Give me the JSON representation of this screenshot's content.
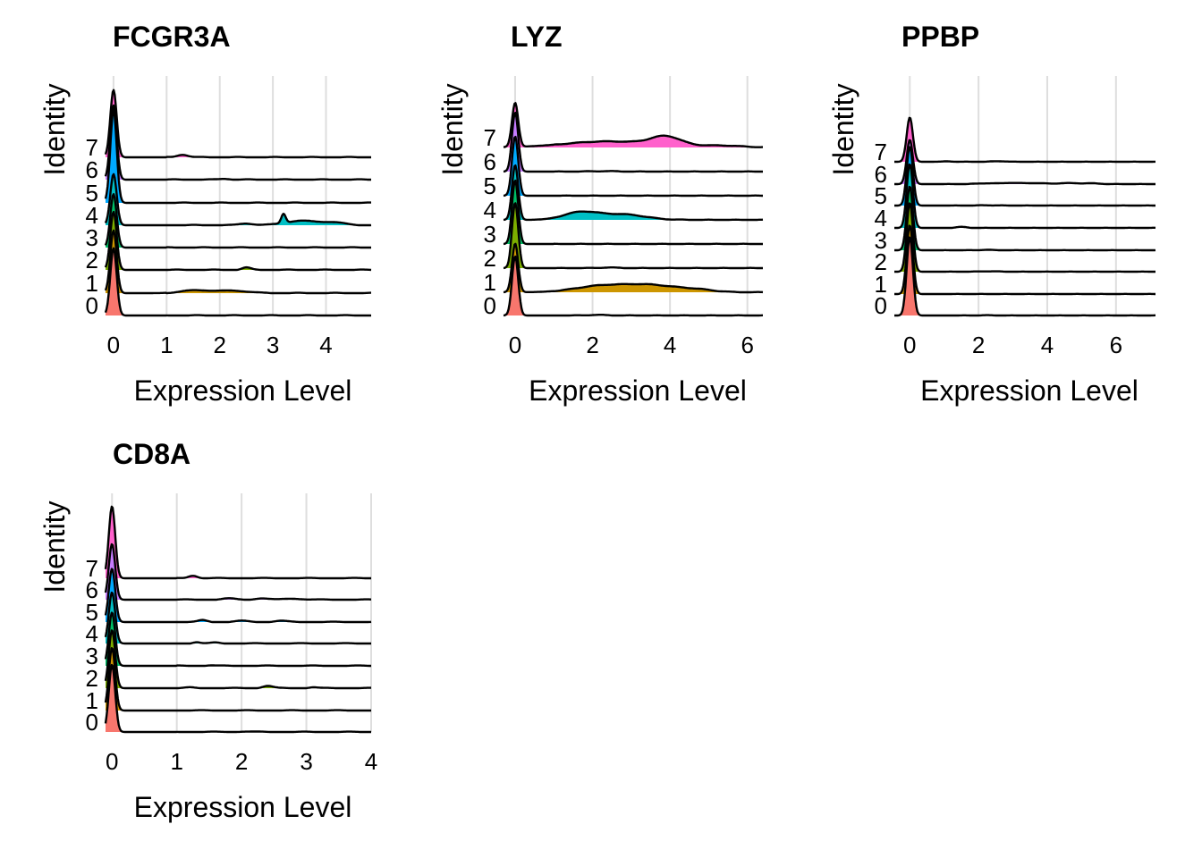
{
  "chart_data": [
    {
      "type": "ridgeline",
      "title": "FCGR3A",
      "xlabel": "Expression Level",
      "ylabel": "Identity",
      "categories": [
        "0",
        "1",
        "2",
        "3",
        "4",
        "5",
        "6",
        "7"
      ],
      "xlim": [
        -0.15,
        4.85
      ],
      "xticks": [
        0,
        1,
        2,
        3,
        4
      ],
      "grid": true,
      "legend": "none",
      "series": [
        {
          "name": "0",
          "color": "#F8766D",
          "peak_height": 2.9,
          "bumps": []
        },
        {
          "name": "1",
          "color": "#CD9600",
          "peak_height": 2.7,
          "bumps": [
            [
              1.6,
              0.13,
              0.35
            ],
            [
              2.3,
              0.1,
              0.3
            ]
          ]
        },
        {
          "name": "2",
          "color": "#7CAE00",
          "peak_height": 2.5,
          "bumps": [
            [
              2.5,
              0.1,
              0.1
            ]
          ]
        },
        {
          "name": "3",
          "color": "#00BE67",
          "peak_height": 2.3,
          "bumps": []
        },
        {
          "name": "4",
          "color": "#00BFC4",
          "peak_height": 2.2,
          "bumps": [
            [
              2.5,
              0.08,
              0.15
            ],
            [
              3.2,
              0.4,
              0.05
            ],
            [
              3.5,
              0.18,
              0.35
            ],
            [
              4.1,
              0.12,
              0.3
            ]
          ]
        },
        {
          "name": "5",
          "color": "#00A9FF",
          "peak_height": 4.0,
          "bumps": []
        },
        {
          "name": "6",
          "color": "#C77CFF",
          "peak_height": 3.2,
          "bumps": [
            [
              2.1,
              0.04,
              0.12
            ]
          ]
        },
        {
          "name": "7",
          "color": "#FF61CC",
          "peak_height": 2.9,
          "bumps": [
            [
              1.3,
              0.12,
              0.12
            ]
          ]
        }
      ]
    },
    {
      "type": "ridgeline",
      "title": "LYZ",
      "xlabel": "Expression Level",
      "ylabel": "Identity",
      "categories": [
        "0",
        "1",
        "2",
        "3",
        "4",
        "5",
        "6",
        "7"
      ],
      "xlim": [
        -0.3,
        6.4
      ],
      "xticks": [
        0,
        2,
        4,
        6
      ],
      "grid": true,
      "legend": "none",
      "series": [
        {
          "name": "0",
          "color": "#F8766D",
          "peak_height": 3.9,
          "bumps": [
            [
              2.1,
              0.04,
              0.2
            ]
          ]
        },
        {
          "name": "1",
          "color": "#CD9600",
          "peak_height": 3.2,
          "bumps": [
            [
              2.2,
              0.4,
              0.6
            ],
            [
              3.5,
              0.45,
              0.6
            ],
            [
              4.7,
              0.15,
              0.4
            ]
          ]
        },
        {
          "name": "2",
          "color": "#7CAE00",
          "peak_height": 4.3,
          "bumps": [
            [
              2.4,
              0.04,
              0.2
            ]
          ]
        },
        {
          "name": "3",
          "color": "#00BE67",
          "peak_height": 4.2,
          "bumps": []
        },
        {
          "name": "4",
          "color": "#00BFC4",
          "peak_height": 3.6,
          "bumps": [
            [
              1.7,
              0.5,
              0.4
            ],
            [
              2.8,
              0.35,
              0.5
            ]
          ]
        },
        {
          "name": "5",
          "color": "#00A9FF",
          "peak_height": 3.9,
          "bumps": []
        },
        {
          "name": "6",
          "color": "#C77CFF",
          "peak_height": 3.9,
          "bumps": [
            [
              2.3,
              0.03,
              0.3
            ]
          ]
        },
        {
          "name": "7",
          "color": "#FF61CC",
          "peak_height": 2.9,
          "bumps": [
            [
              2.4,
              0.4,
              1.0
            ],
            [
              3.9,
              0.6,
              0.35
            ],
            [
              5.3,
              0.12,
              0.5
            ]
          ]
        }
      ]
    },
    {
      "type": "ridgeline",
      "title": "PPBP",
      "xlabel": "Expression Level",
      "ylabel": "Identity",
      "categories": [
        "0",
        "1",
        "2",
        "3",
        "4",
        "5",
        "6",
        "7"
      ],
      "xlim": [
        -0.45,
        7.15
      ],
      "xticks": [
        0,
        2,
        4,
        6
      ],
      "grid": true,
      "legend": "none",
      "series": [
        {
          "name": "0",
          "color": "#F8766D",
          "peak_height": 8.0,
          "bumps": [
            [
              2.2,
              0.02,
              0.2
            ]
          ]
        },
        {
          "name": "1",
          "color": "#CD9600",
          "peak_height": 7.0,
          "bumps": []
        },
        {
          "name": "2",
          "color": "#7CAE00",
          "peak_height": 7.0,
          "bumps": [
            [
              2.3,
              0.04,
              0.2
            ]
          ]
        },
        {
          "name": "3",
          "color": "#00BE67",
          "peak_height": 6.5,
          "bumps": [
            [
              2.2,
              0.04,
              0.15
            ]
          ]
        },
        {
          "name": "4",
          "color": "#00BFC4",
          "peak_height": 6.5,
          "bumps": [
            [
              1.5,
              0.1,
              0.12
            ]
          ]
        },
        {
          "name": "5",
          "color": "#00A9FF",
          "peak_height": 6.0,
          "bumps": [
            [
              2.3,
              0.03,
              0.2
            ]
          ]
        },
        {
          "name": "6",
          "color": "#C77CFF",
          "peak_height": 4.5,
          "bumps": [
            [
              2.2,
              0.08,
              0.2
            ],
            [
              2.9,
              0.12,
              0.2
            ],
            [
              3.6,
              0.1,
              0.25
            ],
            [
              4.6,
              0.1,
              0.25
            ],
            [
              5.3,
              0.07,
              0.2
            ]
          ]
        },
        {
          "name": "7",
          "color": "#FF61CC",
          "peak_height": 4.5,
          "bumps": [
            [
              1.1,
              0.04,
              0.15
            ],
            [
              2.6,
              0.06,
              0.15
            ]
          ]
        }
      ]
    },
    {
      "type": "ridgeline",
      "title": "CD8A",
      "xlabel": "Expression Level",
      "ylabel": "Identity",
      "categories": [
        "0",
        "1",
        "2",
        "3",
        "4",
        "5",
        "6",
        "7"
      ],
      "xlim": [
        -0.1,
        4.0
      ],
      "xticks": [
        0,
        1,
        2,
        3,
        4
      ],
      "grid": true,
      "legend": "none",
      "series": [
        {
          "name": "0",
          "color": "#F8766D",
          "peak_height": 2.9,
          "bumps": [
            [
              2.0,
              0.02,
              0.2
            ]
          ]
        },
        {
          "name": "1",
          "color": "#CD9600",
          "peak_height": 2.7,
          "bumps": []
        },
        {
          "name": "2",
          "color": "#7CAE00",
          "peak_height": 2.5,
          "bumps": [
            [
              1.2,
              0.03,
              0.1
            ],
            [
              2.4,
              0.1,
              0.12
            ],
            [
              3.1,
              0.04,
              0.1
            ]
          ]
        },
        {
          "name": "3",
          "color": "#00BE67",
          "peak_height": 2.3,
          "bumps": [
            [
              1.5,
              0.02,
              0.1
            ]
          ]
        },
        {
          "name": "4",
          "color": "#00BFC4",
          "peak_height": 2.2,
          "bumps": [
            [
              1.3,
              0.06,
              0.08
            ],
            [
              1.6,
              0.04,
              0.1
            ]
          ]
        },
        {
          "name": "5",
          "color": "#00A9FF",
          "peak_height": 2.3,
          "bumps": [
            [
              1.4,
              0.08,
              0.1
            ],
            [
              2.0,
              0.05,
              0.15
            ],
            [
              2.6,
              0.05,
              0.15
            ]
          ]
        },
        {
          "name": "6",
          "color": "#C77CFF",
          "peak_height": 2.4,
          "bumps": [
            [
              1.8,
              0.05,
              0.15
            ],
            [
              2.3,
              0.06,
              0.15
            ],
            [
              2.8,
              0.05,
              0.2
            ]
          ]
        },
        {
          "name": "7",
          "color": "#FF61CC",
          "peak_height": 3.1,
          "bumps": [
            [
              1.25,
              0.12,
              0.1
            ]
          ]
        }
      ]
    }
  ]
}
